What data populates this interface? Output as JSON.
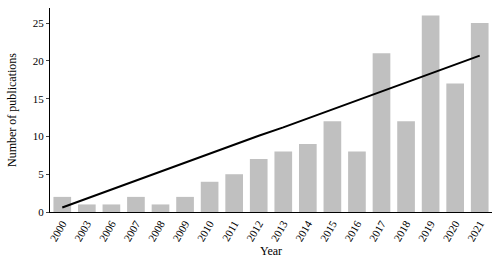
{
  "chart_data": {
    "type": "bar",
    "x_label": "Year",
    "y_label": "Number of publications",
    "categories": [
      "2000",
      "2003",
      "2006",
      "2007",
      "2008",
      "2009",
      "2010",
      "2011",
      "2012",
      "2013",
      "2014",
      "2015",
      "2016",
      "2017",
      "2018",
      "2019",
      "2020",
      "2021"
    ],
    "series": [
      {
        "type": "bar",
        "color": "#c0c0c0",
        "values": [
          2,
          1,
          1,
          2,
          1,
          2,
          4,
          5,
          7,
          8,
          9,
          12,
          8,
          21,
          12,
          26,
          17,
          25
        ]
      },
      {
        "type": "line",
        "color": "#000000",
        "line_style": "solid",
        "values": [
          0.6,
          1.8,
          3.0,
          4.1,
          5.3,
          6.5,
          7.7,
          8.9,
          10.1,
          11.2,
          12.4,
          13.6,
          14.8,
          16.0,
          17.2,
          18.3,
          19.5,
          20.7
        ]
      }
    ],
    "ylim": [
      0,
      27
    ],
    "yticks": [
      0,
      5,
      10,
      15,
      20,
      25
    ],
    "grid": false
  }
}
